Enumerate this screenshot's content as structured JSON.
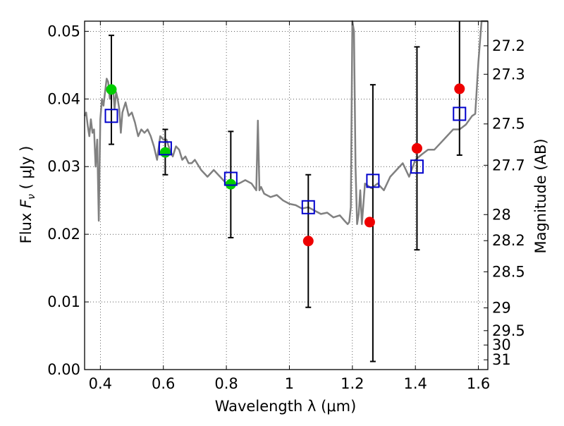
{
  "chart_data": {
    "type": "scatter",
    "title": "",
    "xlabel": "Wavelength  λ (μm)",
    "ylabel_prefix": "Flux  ",
    "ylabel_symbol": "F",
    "ylabel_sub": "ν",
    "ylabel_suffix": "  ( μJy )",
    "y2label": "Magnitude (AB)",
    "xlim": [
      0.35,
      1.63
    ],
    "ylim": [
      0.0,
      0.0515
    ],
    "grid": true,
    "x_ticks": [
      0.4,
      0.6,
      0.8,
      1.0,
      1.2,
      1.4,
      1.6
    ],
    "x_tick_labels": [
      "0.4",
      "0.6",
      "0.8",
      "1",
      "1.2",
      "1.4",
      "1.6"
    ],
    "y_ticks": [
      0.0,
      0.01,
      0.02,
      0.03,
      0.04,
      0.05
    ],
    "y_tick_labels": [
      "0.00",
      "0.01",
      "0.02",
      "0.03",
      "0.04",
      "0.05"
    ],
    "y2_ticks": [
      27.2,
      27.3,
      27.5,
      27.7,
      28,
      28.2,
      28.5,
      29,
      29.5,
      30,
      31
    ],
    "y2_tick_labels": [
      "27.2",
      "27.3",
      "27.5",
      "27.7",
      "28",
      "28.2",
      "28.5",
      "29",
      "29.5",
      "30",
      "31"
    ],
    "model_spectrum": {
      "color": "#808080",
      "x": [
        0.35,
        0.355,
        0.36,
        0.365,
        0.37,
        0.375,
        0.38,
        0.385,
        0.39,
        0.395,
        0.4,
        0.405,
        0.41,
        0.415,
        0.42,
        0.425,
        0.43,
        0.435,
        0.44,
        0.445,
        0.45,
        0.455,
        0.46,
        0.465,
        0.47,
        0.48,
        0.49,
        0.5,
        0.51,
        0.515,
        0.52,
        0.53,
        0.54,
        0.55,
        0.56,
        0.57,
        0.58,
        0.59,
        0.6,
        0.61,
        0.62,
        0.625,
        0.63,
        0.64,
        0.65,
        0.66,
        0.67,
        0.68,
        0.69,
        0.7,
        0.72,
        0.74,
        0.76,
        0.78,
        0.8,
        0.82,
        0.84,
        0.86,
        0.88,
        0.895,
        0.9,
        0.905,
        0.91,
        0.92,
        0.94,
        0.96,
        0.98,
        1.0,
        1.02,
        1.04,
        1.06,
        1.08,
        1.1,
        1.12,
        1.14,
        1.16,
        1.175,
        1.185,
        1.19,
        1.195,
        1.2,
        1.205,
        1.21,
        1.215,
        1.22,
        1.225,
        1.23,
        1.24,
        1.26,
        1.28,
        1.3,
        1.32,
        1.34,
        1.36,
        1.38,
        1.4,
        1.42,
        1.44,
        1.46,
        1.48,
        1.5,
        1.52,
        1.54,
        1.56,
        1.58,
        1.59,
        1.6,
        1.61,
        1.62,
        1.63
      ],
      "y": [
        0.0375,
        0.038,
        0.036,
        0.0345,
        0.037,
        0.035,
        0.0355,
        0.03,
        0.034,
        0.022,
        0.037,
        0.04,
        0.039,
        0.041,
        0.043,
        0.0425,
        0.04,
        0.041,
        0.042,
        0.0385,
        0.041,
        0.04,
        0.0385,
        0.035,
        0.038,
        0.0395,
        0.0375,
        0.038,
        0.0365,
        0.0355,
        0.0345,
        0.0355,
        0.035,
        0.0355,
        0.0345,
        0.033,
        0.031,
        0.0345,
        0.034,
        0.034,
        0.0325,
        0.032,
        0.0315,
        0.033,
        0.0325,
        0.031,
        0.0315,
        0.0305,
        0.0305,
        0.031,
        0.0295,
        0.0285,
        0.0295,
        0.0285,
        0.0275,
        0.0275,
        0.0275,
        0.028,
        0.0275,
        0.0265,
        0.0368,
        0.0265,
        0.027,
        0.026,
        0.0255,
        0.0258,
        0.025,
        0.0245,
        0.0243,
        0.0238,
        0.024,
        0.0235,
        0.023,
        0.0232,
        0.0225,
        0.0228,
        0.022,
        0.0215,
        0.0218,
        0.024,
        0.0515,
        0.05,
        0.03,
        0.0215,
        0.023,
        0.0265,
        0.0215,
        0.0275,
        0.0268,
        0.0275,
        0.0265,
        0.0285,
        0.0295,
        0.0305,
        0.0285,
        0.031,
        0.0318,
        0.0325,
        0.0325,
        0.0335,
        0.0345,
        0.0355,
        0.0355,
        0.0362,
        0.0375,
        0.0378,
        0.0455,
        0.0515,
        0.0515,
        0.0515
      ]
    },
    "model_photometry": {
      "marker": "square",
      "color": "#0000cc",
      "x": [
        0.435,
        0.606,
        0.814,
        1.06,
        1.265,
        1.405,
        1.54
      ],
      "y": [
        0.0375,
        0.0327,
        0.0282,
        0.024,
        0.0279,
        0.03,
        0.0378
      ]
    },
    "detections": {
      "marker": "circle",
      "color": "#00cc00",
      "x": [
        0.435,
        0.606,
        0.814
      ],
      "y": [
        0.0414,
        0.0321,
        0.0274
      ]
    },
    "non_detections": {
      "marker": "circle",
      "color": "#ee0000",
      "x": [
        1.06,
        1.255,
        1.405,
        1.54
      ],
      "y": [
        0.019,
        0.0218,
        0.0327,
        0.0415
      ]
    },
    "error_bars": {
      "color": "#000000",
      "x": [
        0.435,
        0.606,
        0.814,
        1.06,
        1.265,
        1.405,
        1.54
      ],
      "low": [
        0.0333,
        0.0288,
        0.0195,
        0.0092,
        0.0012,
        0.0177,
        0.0317
      ],
      "high": [
        0.0494,
        0.0355,
        0.0352,
        0.0288,
        0.0421,
        0.0477,
        0.0515
      ]
    }
  }
}
